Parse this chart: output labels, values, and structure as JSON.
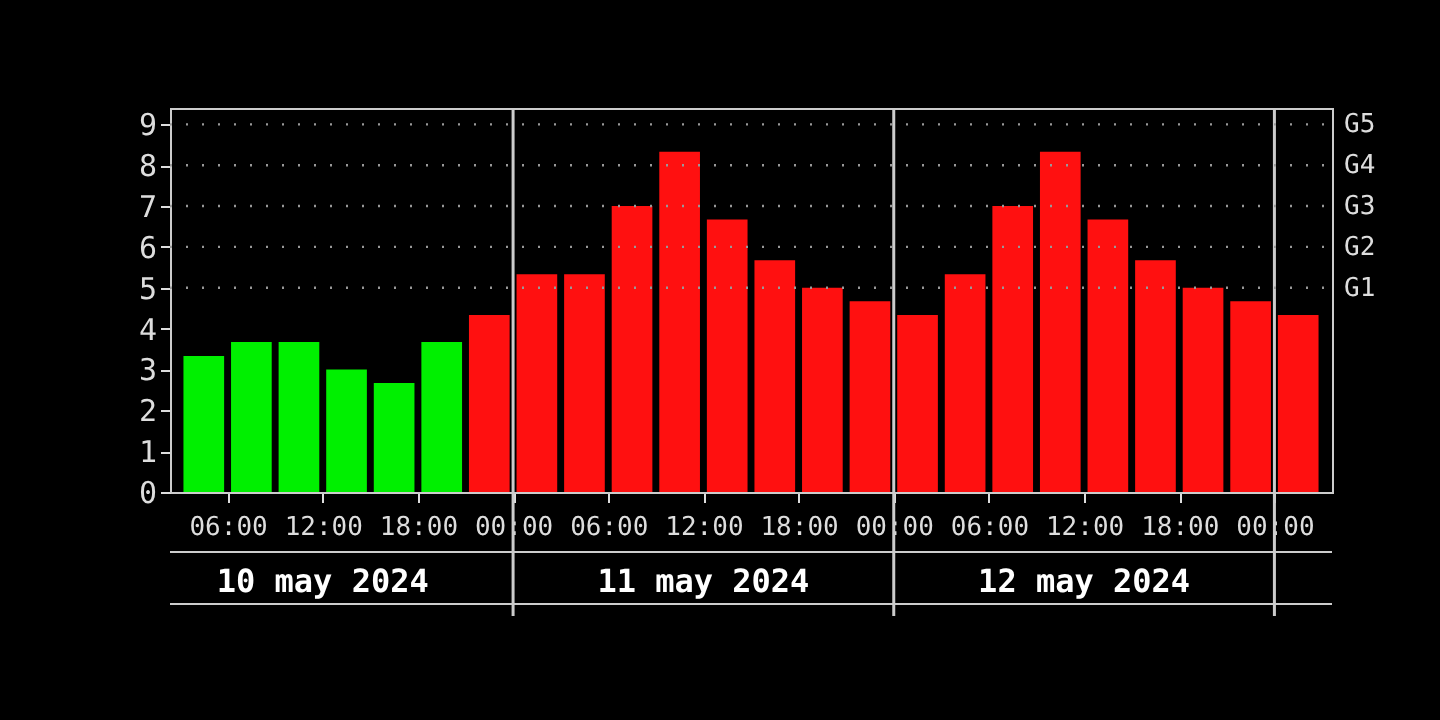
{
  "chart_data": {
    "type": "bar",
    "x": [
      "2024-05-10T04:30",
      "2024-05-10T07:30",
      "2024-05-10T10:30",
      "2024-05-10T13:30",
      "2024-05-10T16:30",
      "2024-05-10T19:30",
      "2024-05-10T22:30",
      "2024-05-11T01:30",
      "2024-05-11T04:30",
      "2024-05-11T07:30",
      "2024-05-11T10:30",
      "2024-05-11T13:30",
      "2024-05-11T16:30",
      "2024-05-11T19:30",
      "2024-05-11T22:30",
      "2024-05-12T01:30",
      "2024-05-12T04:30",
      "2024-05-12T07:30",
      "2024-05-12T10:30",
      "2024-05-12T13:30",
      "2024-05-12T16:30",
      "2024-05-12T19:30",
      "2024-05-12T22:30",
      "2024-05-13T01:30"
    ],
    "values": [
      3.33,
      3.67,
      3.67,
      3.0,
      2.67,
      3.67,
      4.33,
      5.33,
      5.33,
      7.0,
      8.33,
      6.67,
      5.67,
      5.0,
      4.67,
      4.33,
      5.33,
      7.0,
      8.33,
      6.67,
      5.67,
      5.0,
      4.67,
      4.33
    ],
    "colors": [
      "#00f000",
      "#00f000",
      "#00f000",
      "#00f000",
      "#00f000",
      "#00f000",
      "#ff1010",
      "#ff1010",
      "#ff1010",
      "#ff1010",
      "#ff1010",
      "#ff1010",
      "#ff1010",
      "#ff1010",
      "#ff1010",
      "#ff1010",
      "#ff1010",
      "#ff1010",
      "#ff1010",
      "#ff1010",
      "#ff1010",
      "#ff1010",
      "#ff1010",
      "#ff1010"
    ],
    "xlim": [
      "2024-05-10T03:00",
      "2024-05-13T03:00"
    ],
    "xticks": [
      {
        "value": "2024-05-10T06:00",
        "label": "06:00"
      },
      {
        "value": "2024-05-10T12:00",
        "label": "12:00"
      },
      {
        "value": "2024-05-10T18:00",
        "label": "18:00"
      },
      {
        "value": "2024-05-11T00:00",
        "label": "00:00"
      },
      {
        "value": "2024-05-11T06:00",
        "label": "06:00"
      },
      {
        "value": "2024-05-11T12:00",
        "label": "12:00"
      },
      {
        "value": "2024-05-11T18:00",
        "label": "18:00"
      },
      {
        "value": "2024-05-12T00:00",
        "label": "00:00"
      },
      {
        "value": "2024-05-12T06:00",
        "label": "06:00"
      },
      {
        "value": "2024-05-12T12:00",
        "label": "12:00"
      },
      {
        "value": "2024-05-12T18:00",
        "label": "18:00"
      },
      {
        "value": "2024-05-13T00:00",
        "label": "00:00"
      }
    ],
    "ylim": [
      0,
      9.4
    ],
    "yticks": [
      0,
      1,
      2,
      3,
      4,
      5,
      6,
      7,
      8,
      9
    ],
    "ref_lines": [
      {
        "axis": "x",
        "value": "2024-05-11T00:00",
        "label": null,
        "color": "#cccccc",
        "line_style": "solid"
      },
      {
        "axis": "x",
        "value": "2024-05-12T00:00",
        "label": null,
        "color": "#cccccc",
        "line_style": "solid"
      },
      {
        "axis": "x",
        "value": "2024-05-13T00:00",
        "label": null,
        "color": "#cccccc",
        "line_style": "solid"
      },
      {
        "axis": "y",
        "value": 5,
        "label": "G1",
        "color": "#999999",
        "line_style": "dotted"
      },
      {
        "axis": "y",
        "value": 6,
        "label": "G2",
        "color": "#999999",
        "line_style": "dotted"
      },
      {
        "axis": "y",
        "value": 7,
        "label": "G3",
        "color": "#999999",
        "line_style": "dotted"
      },
      {
        "axis": "y",
        "value": 8,
        "label": "G4",
        "color": "#999999",
        "line_style": "dotted"
      },
      {
        "axis": "y",
        "value": 9,
        "label": "G5",
        "color": "#999999",
        "line_style": "dotted"
      }
    ],
    "annotations": [
      "10 may 2024",
      "11 may 2024",
      "12 may 2024"
    ]
  }
}
